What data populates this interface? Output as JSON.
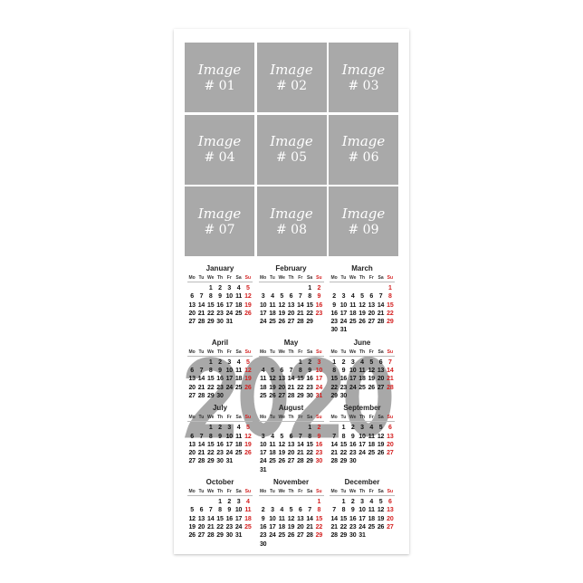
{
  "year": "2020",
  "tiles": [
    {
      "label": "Image",
      "num": "# 01"
    },
    {
      "label": "Image",
      "num": "# 02"
    },
    {
      "label": "Image",
      "num": "# 03"
    },
    {
      "label": "Image",
      "num": "# 04"
    },
    {
      "label": "Image",
      "num": "# 05"
    },
    {
      "label": "Image",
      "num": "# 06"
    },
    {
      "label": "Image",
      "num": "# 07"
    },
    {
      "label": "Image",
      "num": "# 08"
    },
    {
      "label": "Image",
      "num": "# 09"
    }
  ],
  "weekdays": [
    "Mo",
    "Tu",
    "We",
    "Th",
    "Fr",
    "Sa",
    "Su"
  ],
  "months": [
    "January",
    "February",
    "March",
    "April",
    "May",
    "June",
    "July",
    "August",
    "September",
    "October",
    "November",
    "December"
  ],
  "colors": {
    "sunday": "#d42020",
    "placeholder": "#a9a9a9",
    "watermark": "#a8a8a8"
  }
}
